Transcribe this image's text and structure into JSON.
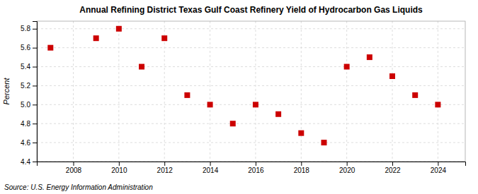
{
  "chart_data": {
    "type": "scatter",
    "title": "Annual Refining District Texas Gulf Coast Refinery Yield of Hydrocarbon Gas Liquids",
    "ylabel": "Percent",
    "source": "Source: U.S. Energy Information Administration",
    "x": [
      2007,
      2009,
      2010,
      2011,
      2012,
      2013,
      2014,
      2015,
      2016,
      2017,
      2018,
      2019,
      2020,
      2021,
      2022,
      2023,
      2024
    ],
    "values": [
      5.6,
      5.7,
      5.8,
      5.4,
      5.7,
      5.1,
      5.0,
      4.8,
      5.0,
      4.9,
      4.7,
      4.6,
      5.4,
      5.5,
      5.3,
      5.1,
      5.0
    ],
    "color": "#cc0000",
    "marker": "square",
    "xlim": [
      2006.4,
      2025.2
    ],
    "ylim": [
      4.4,
      5.88
    ],
    "xticks": [
      2008,
      2010,
      2012,
      2014,
      2016,
      2018,
      2020,
      2022,
      2024
    ],
    "yticks": [
      4.4,
      4.6,
      4.8,
      {
        "value": 5.0,
        "label": "5.0"
      },
      5.2,
      5.4,
      5.6,
      5.8
    ],
    "grid": true
  }
}
